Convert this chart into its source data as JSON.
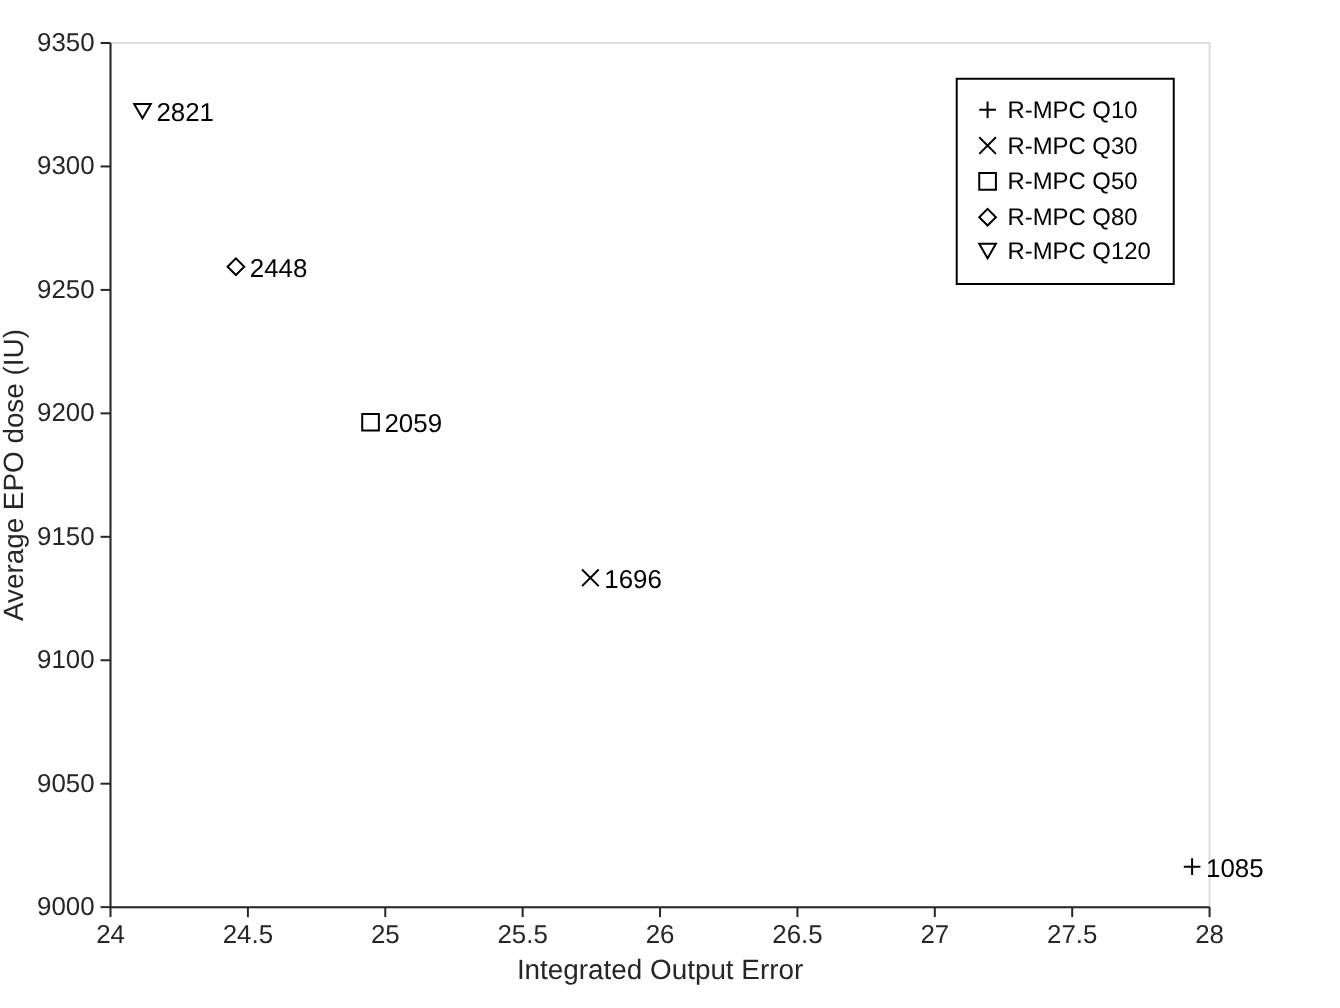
{
  "chart_data": {
    "type": "scatter",
    "xlabel": "Integrated Output Error",
    "ylabel": "Average EPO dose (IU)",
    "xlim": [
      24,
      28
    ],
    "xticks": [
      24,
      24.5,
      25,
      25.5,
      26,
      26.5,
      27,
      27.5,
      28
    ],
    "ylim": [
      9000,
      9350
    ],
    "yticks": [
      9000,
      9050,
      9100,
      9150,
      9200,
      9250,
      9300,
      9350
    ],
    "grid": false,
    "legend": "top right",
    "series": [
      {
        "name": "R-MPC Q10",
        "color": "#000000",
        "marker": "cross",
        "x": [
          27.94
        ],
        "values": [
          9016
        ]
      },
      {
        "name": "R-MPC Q30",
        "color": "#000000",
        "marker": "x",
        "x": [
          25.75
        ],
        "values": [
          9133
        ]
      },
      {
        "name": "R-MPC Q50",
        "color": "#000000",
        "marker": "square",
        "x": [
          24.95
        ],
        "values": [
          9196
        ]
      },
      {
        "name": "R-MPC Q80",
        "color": "#000000",
        "marker": "diamond",
        "x": [
          24.46
        ],
        "values": [
          9259
        ]
      },
      {
        "name": "R-MPC Q120",
        "color": "#000000",
        "marker": "triangle-down",
        "x": [
          24.12
        ],
        "values": [
          9322
        ]
      }
    ],
    "annotations": [
      {
        "text": "1085",
        "x": 27.94,
        "y": 9016
      },
      {
        "text": "1696",
        "x": 25.75,
        "y": 9133
      },
      {
        "text": "2059",
        "x": 24.95,
        "y": 9196
      },
      {
        "text": "2448",
        "x": 24.46,
        "y": 9259
      },
      {
        "text": "2821",
        "x": 24.12,
        "y": 9322
      }
    ]
  }
}
